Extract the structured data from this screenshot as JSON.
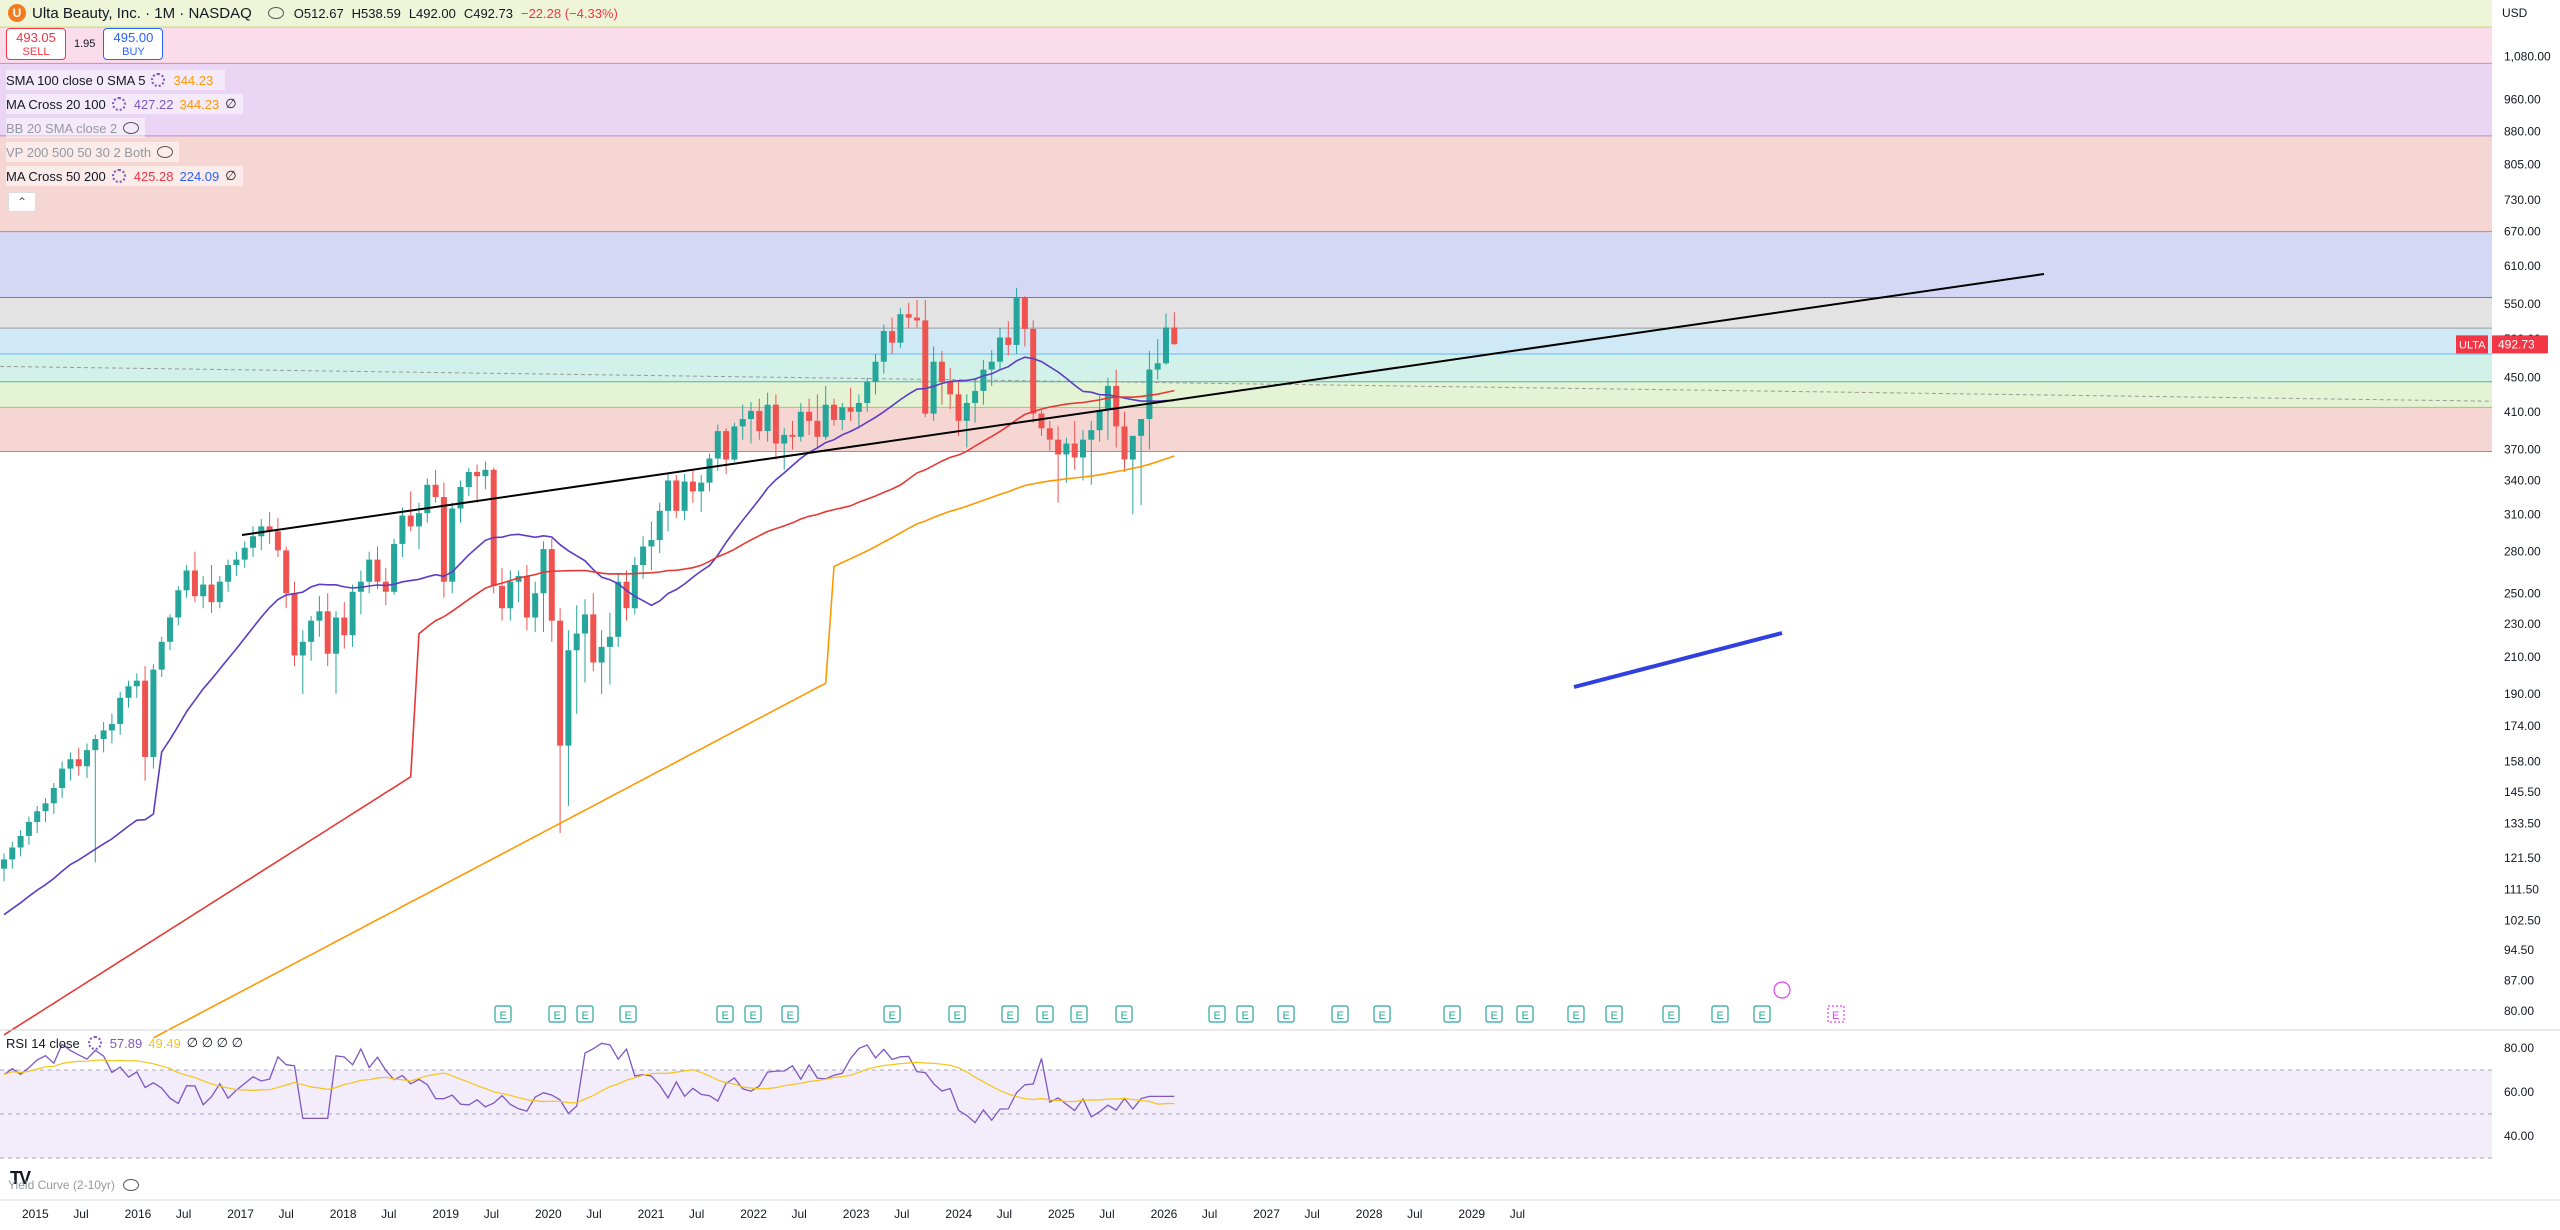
{
  "header": {
    "logo_letter": "U",
    "symbol_title": "Ulta Beauty, Inc. · 1M · NASDAQ",
    "open": "O512.67",
    "high": "H538.59",
    "low": "L492.00",
    "close": "C492.73",
    "change": "−22.28 (−4.33%)"
  },
  "trade": {
    "sell_price": "493.05",
    "sell_label": "SELL",
    "spread": "1.95",
    "buy_price": "495.00",
    "buy_label": "BUY"
  },
  "indicators": [
    {
      "name": "SMA 100 close 0 SMA 5",
      "v1": "344.23"
    },
    {
      "name": "MA Cross 20 100",
      "v1": "427.22",
      "v2": "344.23",
      "v3": "∅"
    },
    {
      "name": "BB 20 SMA close 2"
    },
    {
      "name": "VP 200 500 50 30 2 Both"
    },
    {
      "name": "MA Cross 50 200",
      "v1": "425.28",
      "v2": "224.09",
      "v3": "∅"
    }
  ],
  "collapse_glyph": "⌃",
  "rsi": {
    "name": "RSI 14 close",
    "v1": "57.89",
    "v2": "49.49",
    "extra": "∅ ∅ ∅ ∅",
    "ticks": [
      "80.00",
      "60.00",
      "40.00"
    ]
  },
  "yield_curve_label": "Yield Curve (2-10yr)",
  "tv_logo": "TV",
  "currency": "USD",
  "price_tag": {
    "symbol": "ULTA",
    "value": "492.73"
  },
  "colors": {
    "up": "#26a69a",
    "down": "#ef5350",
    "sma20": "#5b3cc4",
    "ma50": "#e53935",
    "ma100": "#ff9800",
    "trendline": "#000000",
    "blueline": "#2f3fe0"
  },
  "chart_data": {
    "type": "candlestick",
    "title": "Ulta Beauty, Inc. · 1M · NASDAQ",
    "y_scale": "log",
    "ylim": [
      76,
      1260
    ],
    "y_ticks": [
      "1,080.00",
      "960.00",
      "880.00",
      "805.00",
      "730.00",
      "670.00",
      "610.00",
      "550.00",
      "500.00",
      "450.00",
      "410.00",
      "370.00",
      "340.00",
      "310.00",
      "280.00",
      "250.00",
      "230.00",
      "210.00",
      "190.00",
      "174.00",
      "158.00",
      "145.50",
      "133.50",
      "121.50",
      "111.50",
      "102.50",
      "94.50",
      "87.00",
      "80.00"
    ],
    "x_ticks": [
      "2015",
      "Jul",
      "2016",
      "Jul",
      "2017",
      "Jul",
      "2018",
      "Jul",
      "2019",
      "Jul",
      "2020",
      "Jul",
      "2021",
      "Jul",
      "2022",
      "Jul",
      "2023",
      "Jul",
      "2024",
      "Jul",
      "2025",
      "Jul",
      "2026",
      "Jul",
      "2027",
      "Jul",
      "2028",
      "Jul",
      "2029",
      "Jul"
    ],
    "earnings_markers": "E",
    "zones": [
      {
        "from": 1170,
        "to": 1260,
        "color": "#eef5d8"
      },
      {
        "from": 1060,
        "to": 1170,
        "color": "#fadcea"
      },
      {
        "from": 870,
        "to": 1060,
        "color": "#ead5f5"
      },
      {
        "from": 670,
        "to": 870,
        "color": "#f6d6d3"
      },
      {
        "from": 560,
        "to": 670,
        "color": "#d4d8f4"
      },
      {
        "from": 515,
        "to": 560,
        "color": "#e3e3e3"
      },
      {
        "from": 480,
        "to": 515,
        "color": "#cfe9f6"
      },
      {
        "from": 445,
        "to": 480,
        "color": "#d2f1e9"
      },
      {
        "from": 415,
        "to": 445,
        "color": "#e4f3d3"
      },
      {
        "from": 368,
        "to": 415,
        "color": "#f6d6d3"
      }
    ]
  }
}
